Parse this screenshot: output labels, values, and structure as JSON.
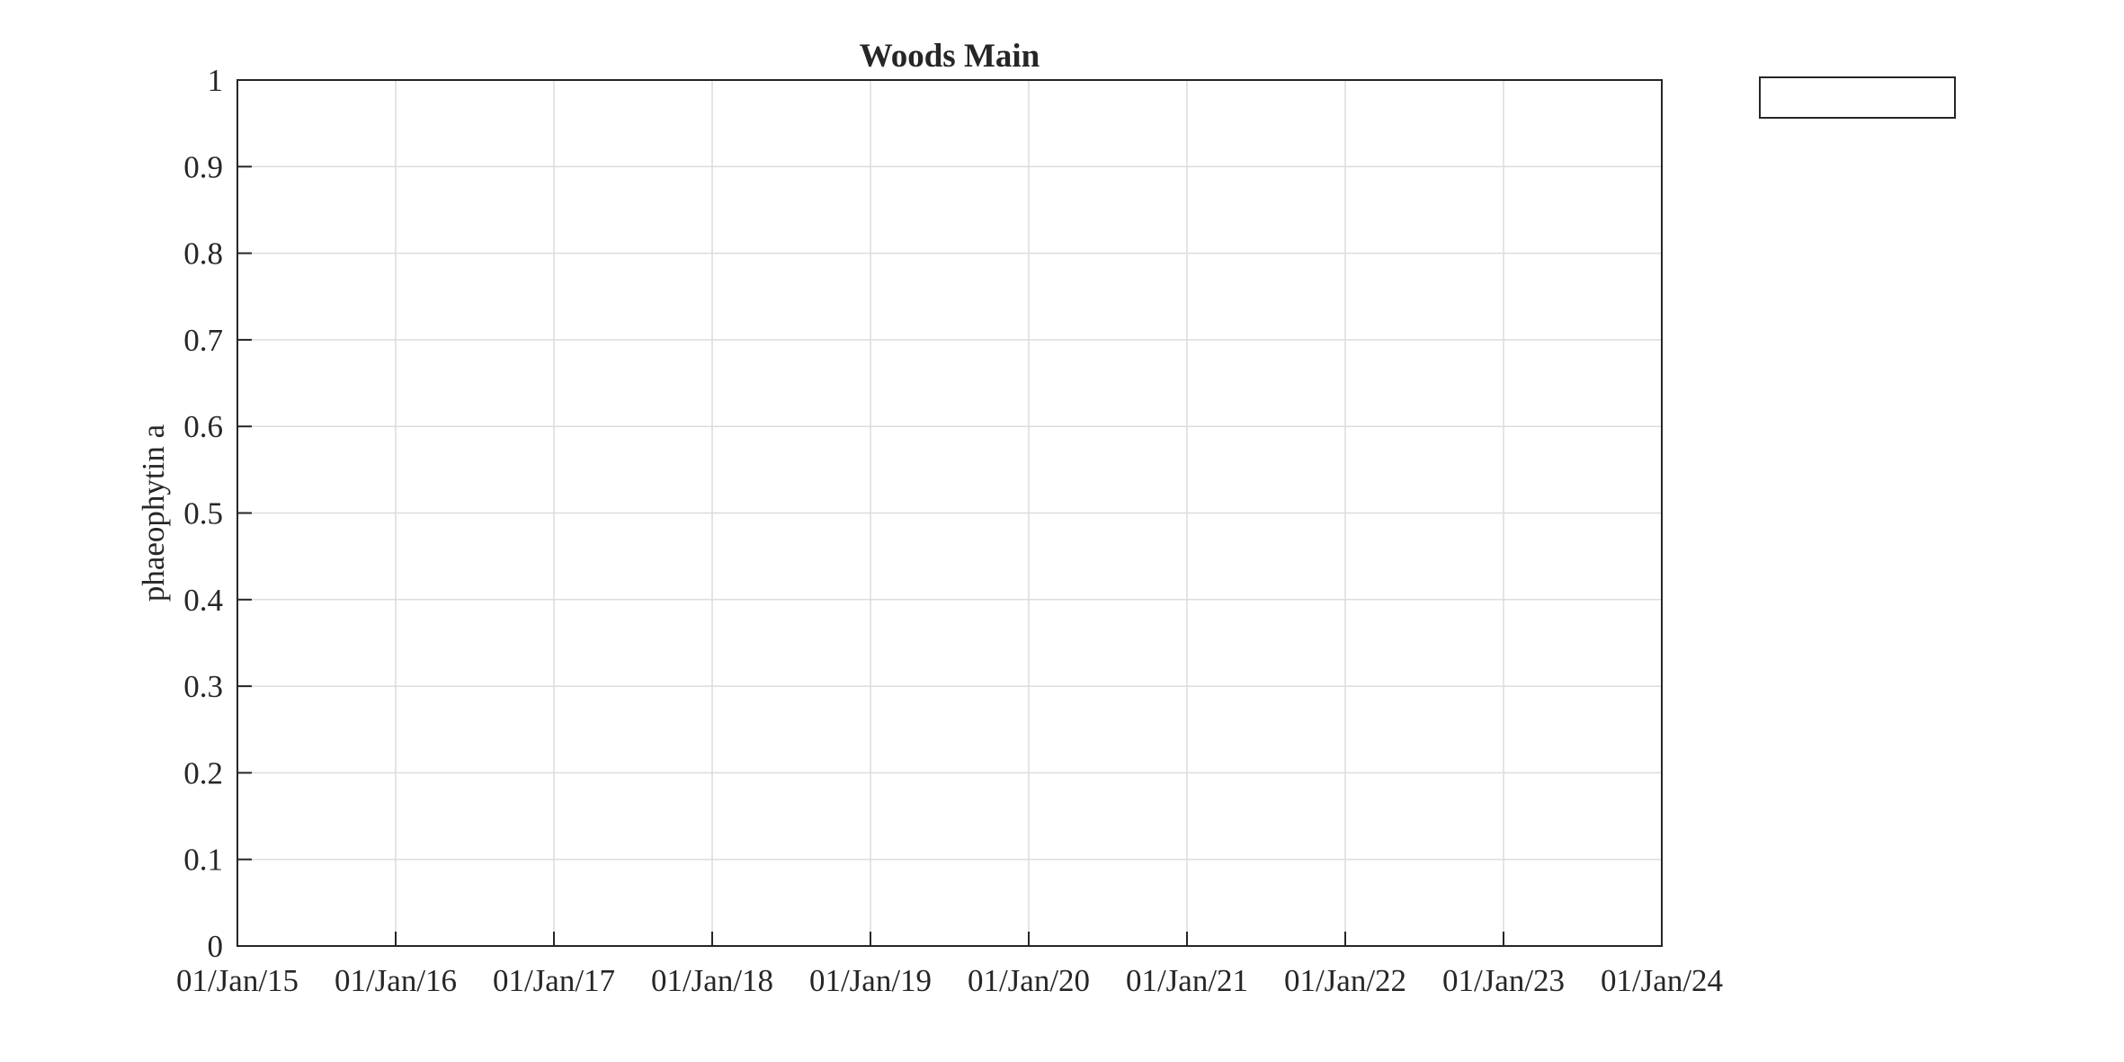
{
  "chart_data": {
    "type": "line",
    "title": "Woods Main",
    "xlabel": "",
    "ylabel": "phaeophytin a",
    "x_ticks": [
      "01/Jan/15",
      "01/Jan/16",
      "01/Jan/17",
      "01/Jan/18",
      "01/Jan/19",
      "01/Jan/20",
      "01/Jan/21",
      "01/Jan/22",
      "01/Jan/23",
      "01/Jan/24"
    ],
    "y_ticks": [
      "0",
      "0.1",
      "0.2",
      "0.3",
      "0.4",
      "0.5",
      "0.6",
      "0.7",
      "0.8",
      "0.9",
      "1"
    ],
    "xlim": [
      "01/Jan/15",
      "01/Jan/24"
    ],
    "ylim": [
      0,
      1
    ],
    "grid": true,
    "legend": {
      "position": "outside-top-right",
      "entries": []
    },
    "series": []
  }
}
